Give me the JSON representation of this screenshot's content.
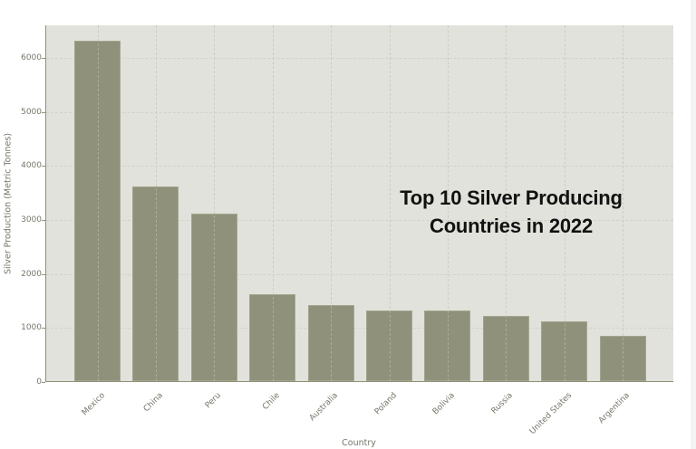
{
  "chart_data": {
    "type": "bar",
    "title": "Top 10 Silver Producing Countries in 2022",
    "xlabel": "Country",
    "ylabel": "Silver Production (Metric Tonnes)",
    "categories": [
      "Mexico",
      "China",
      "Peru",
      "Chile",
      "Australia",
      "Poland",
      "Bolivia",
      "Russia",
      "United States",
      "Argentina"
    ],
    "values": [
      6300,
      3600,
      3100,
      1600,
      1400,
      1300,
      1300,
      1200,
      1100,
      830
    ],
    "ylim": [
      0,
      6600
    ],
    "yticks": [
      "0",
      "1000",
      "2000",
      "3000",
      "4000",
      "5000",
      "6000"
    ],
    "grid": true,
    "legend": null,
    "bar_color": "#8f917a",
    "plot_background": "#e2e2dc"
  },
  "title_line1": "Top 10 Silver Producing",
  "title_line2": "Countries in 2022"
}
